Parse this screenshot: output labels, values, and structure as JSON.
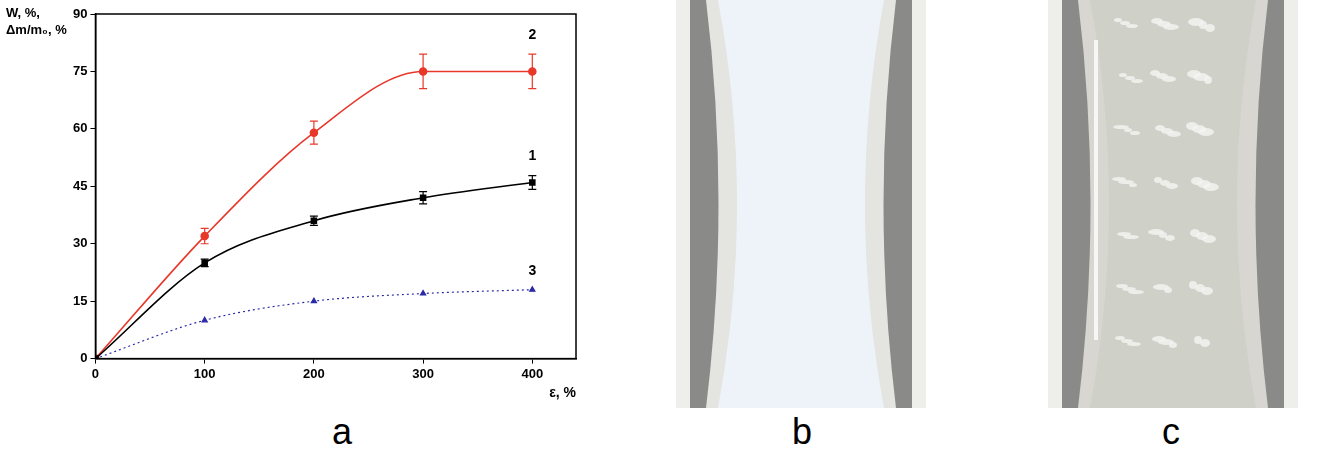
{
  "chart_data": {
    "type": "line",
    "x_label": "ε, %",
    "y_label": [
      "W, %,",
      "Δm/m₀, %"
    ],
    "x": [
      0,
      100,
      200,
      300,
      400
    ],
    "series": [
      {
        "name": "1",
        "color": "#000000",
        "marker": "square",
        "line_style": "solid",
        "values": [
          0,
          25,
          36,
          42,
          46
        ],
        "errors": [
          null,
          1,
          1.2,
          1.6,
          1.8
        ]
      },
      {
        "name": "2",
        "color": "#e8382a",
        "marker": "circle",
        "line_style": "solid",
        "values": [
          0,
          32,
          59,
          75,
          75
        ],
        "errors": [
          null,
          2,
          3,
          4.5,
          4.5
        ]
      },
      {
        "name": "3",
        "color": "#2a2aa8",
        "marker": "triangle",
        "line_style": "dotted",
        "values": [
          0,
          10,
          15,
          17,
          18
        ]
      }
    ],
    "xlim": [
      0,
      440
    ],
    "xticks": [
      0,
      100,
      200,
      300,
      400
    ],
    "ylim": [
      0,
      90
    ],
    "yticks": [
      0,
      15,
      30,
      45,
      60,
      75,
      90
    ],
    "grid": false
  },
  "panel_labels": [
    "a",
    "b",
    "c"
  ]
}
